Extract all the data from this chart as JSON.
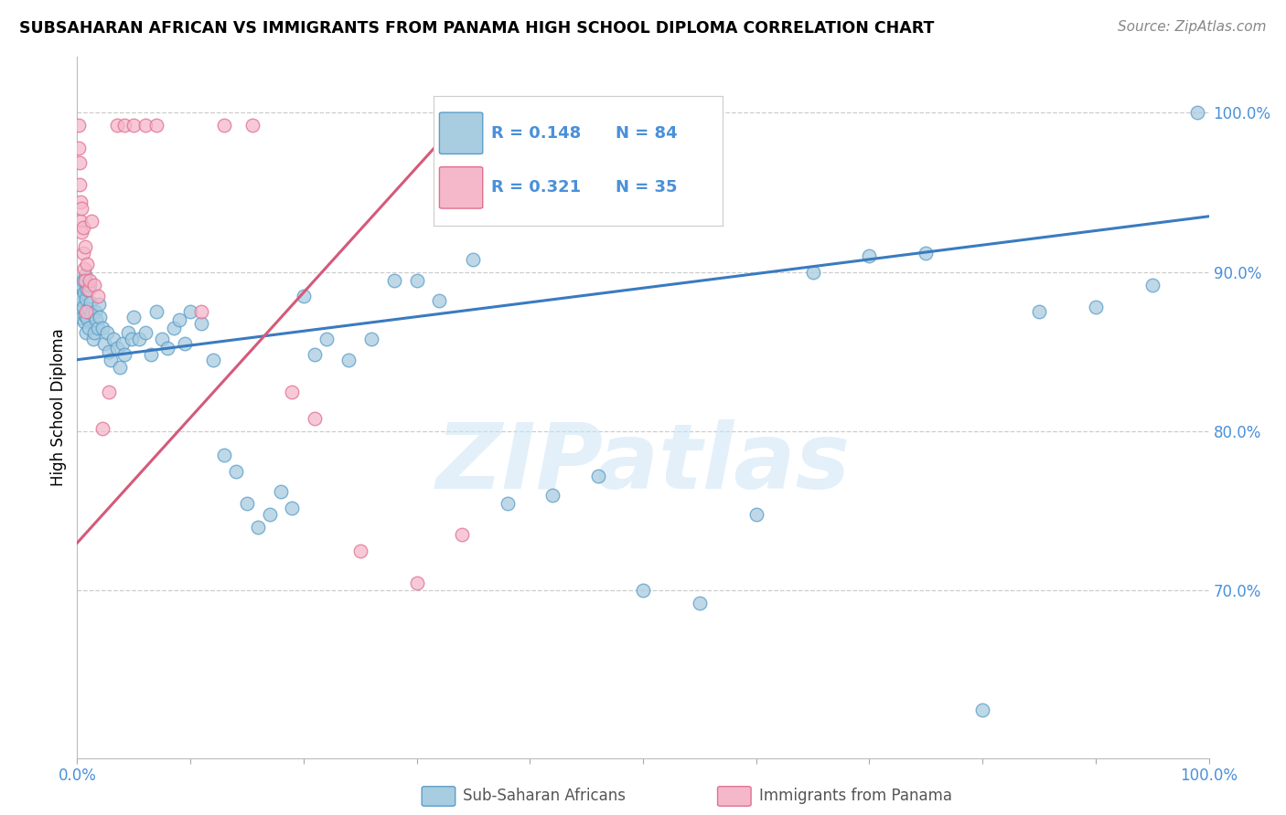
{
  "title": "SUBSAHARAN AFRICAN VS IMMIGRANTS FROM PANAMA HIGH SCHOOL DIPLOMA CORRELATION CHART",
  "source": "Source: ZipAtlas.com",
  "ylabel": "High School Diploma",
  "legend_label_blue": "Sub-Saharan Africans",
  "legend_label_pink": "Immigrants from Panama",
  "legend_r_blue": "R = 0.148",
  "legend_n_blue": "N = 84",
  "legend_r_pink": "R = 0.321",
  "legend_n_pink": "N = 35",
  "watermark": "ZIPatlas",
  "blue_color": "#a8cce0",
  "blue_edge_color": "#5b9dc9",
  "blue_line_color": "#3a7bbf",
  "pink_color": "#f5b8cb",
  "pink_edge_color": "#e07090",
  "pink_line_color": "#d45a7a",
  "grid_color": "#cccccc",
  "right_tick_color": "#4a90d9",
  "blue_x": [
    0.001,
    0.002,
    0.002,
    0.003,
    0.003,
    0.004,
    0.004,
    0.005,
    0.005,
    0.006,
    0.006,
    0.007,
    0.007,
    0.008,
    0.008,
    0.009,
    0.009,
    0.01,
    0.01,
    0.011,
    0.012,
    0.013,
    0.014,
    0.015,
    0.016,
    0.017,
    0.018,
    0.019,
    0.02,
    0.022,
    0.024,
    0.026,
    0.028,
    0.03,
    0.032,
    0.035,
    0.038,
    0.04,
    0.042,
    0.045,
    0.048,
    0.05,
    0.055,
    0.06,
    0.065,
    0.07,
    0.075,
    0.08,
    0.085,
    0.09,
    0.095,
    0.1,
    0.11,
    0.12,
    0.13,
    0.14,
    0.15,
    0.16,
    0.17,
    0.18,
    0.19,
    0.2,
    0.21,
    0.22,
    0.24,
    0.26,
    0.28,
    0.3,
    0.32,
    0.35,
    0.38,
    0.42,
    0.46,
    0.5,
    0.55,
    0.6,
    0.65,
    0.7,
    0.75,
    0.8,
    0.85,
    0.9,
    0.95,
    0.99
  ],
  "blue_y": [
    0.88,
    0.885,
    0.891,
    0.875,
    0.883,
    0.871,
    0.892,
    0.878,
    0.895,
    0.869,
    0.887,
    0.873,
    0.898,
    0.862,
    0.883,
    0.871,
    0.889,
    0.865,
    0.877,
    0.892,
    0.881,
    0.874,
    0.858,
    0.862,
    0.875,
    0.87,
    0.865,
    0.88,
    0.872,
    0.865,
    0.855,
    0.862,
    0.85,
    0.845,
    0.858,
    0.852,
    0.84,
    0.855,
    0.848,
    0.862,
    0.858,
    0.872,
    0.858,
    0.862,
    0.848,
    0.875,
    0.858,
    0.852,
    0.865,
    0.87,
    0.855,
    0.875,
    0.868,
    0.845,
    0.785,
    0.775,
    0.755,
    0.74,
    0.748,
    0.762,
    0.752,
    0.885,
    0.848,
    0.858,
    0.845,
    0.858,
    0.895,
    0.895,
    0.882,
    0.908,
    0.755,
    0.76,
    0.772,
    0.7,
    0.692,
    0.748,
    0.9,
    0.91,
    0.912,
    0.625,
    0.875,
    0.878,
    0.892,
    1.0
  ],
  "pink_x": [
    0.001,
    0.001,
    0.002,
    0.002,
    0.003,
    0.003,
    0.004,
    0.004,
    0.005,
    0.005,
    0.006,
    0.007,
    0.007,
    0.008,
    0.009,
    0.01,
    0.011,
    0.013,
    0.015,
    0.018,
    0.022,
    0.028,
    0.035,
    0.042,
    0.05,
    0.06,
    0.07,
    0.11,
    0.13,
    0.155,
    0.19,
    0.21,
    0.25,
    0.3,
    0.34
  ],
  "pink_y": [
    0.992,
    0.978,
    0.969,
    0.955,
    0.944,
    0.932,
    0.94,
    0.925,
    0.912,
    0.928,
    0.902,
    0.895,
    0.916,
    0.875,
    0.905,
    0.889,
    0.895,
    0.932,
    0.892,
    0.885,
    0.802,
    0.825,
    0.992,
    0.992,
    0.992,
    0.992,
    0.992,
    0.875,
    0.992,
    0.992,
    0.825,
    0.808,
    0.725,
    0.705,
    0.735
  ],
  "xlim": [
    0.0,
    1.0
  ],
  "ylim": [
    0.595,
    1.035
  ],
  "xticks": [
    0.0,
    0.1,
    0.2,
    0.3,
    0.4,
    0.5,
    0.6,
    0.7,
    0.8,
    0.9,
    1.0
  ],
  "yticks_right": [
    0.7,
    0.8,
    0.9,
    1.0
  ],
  "ytick_labels_right": [
    "70.0%",
    "80.0%",
    "90.0%",
    "100.0%"
  ]
}
